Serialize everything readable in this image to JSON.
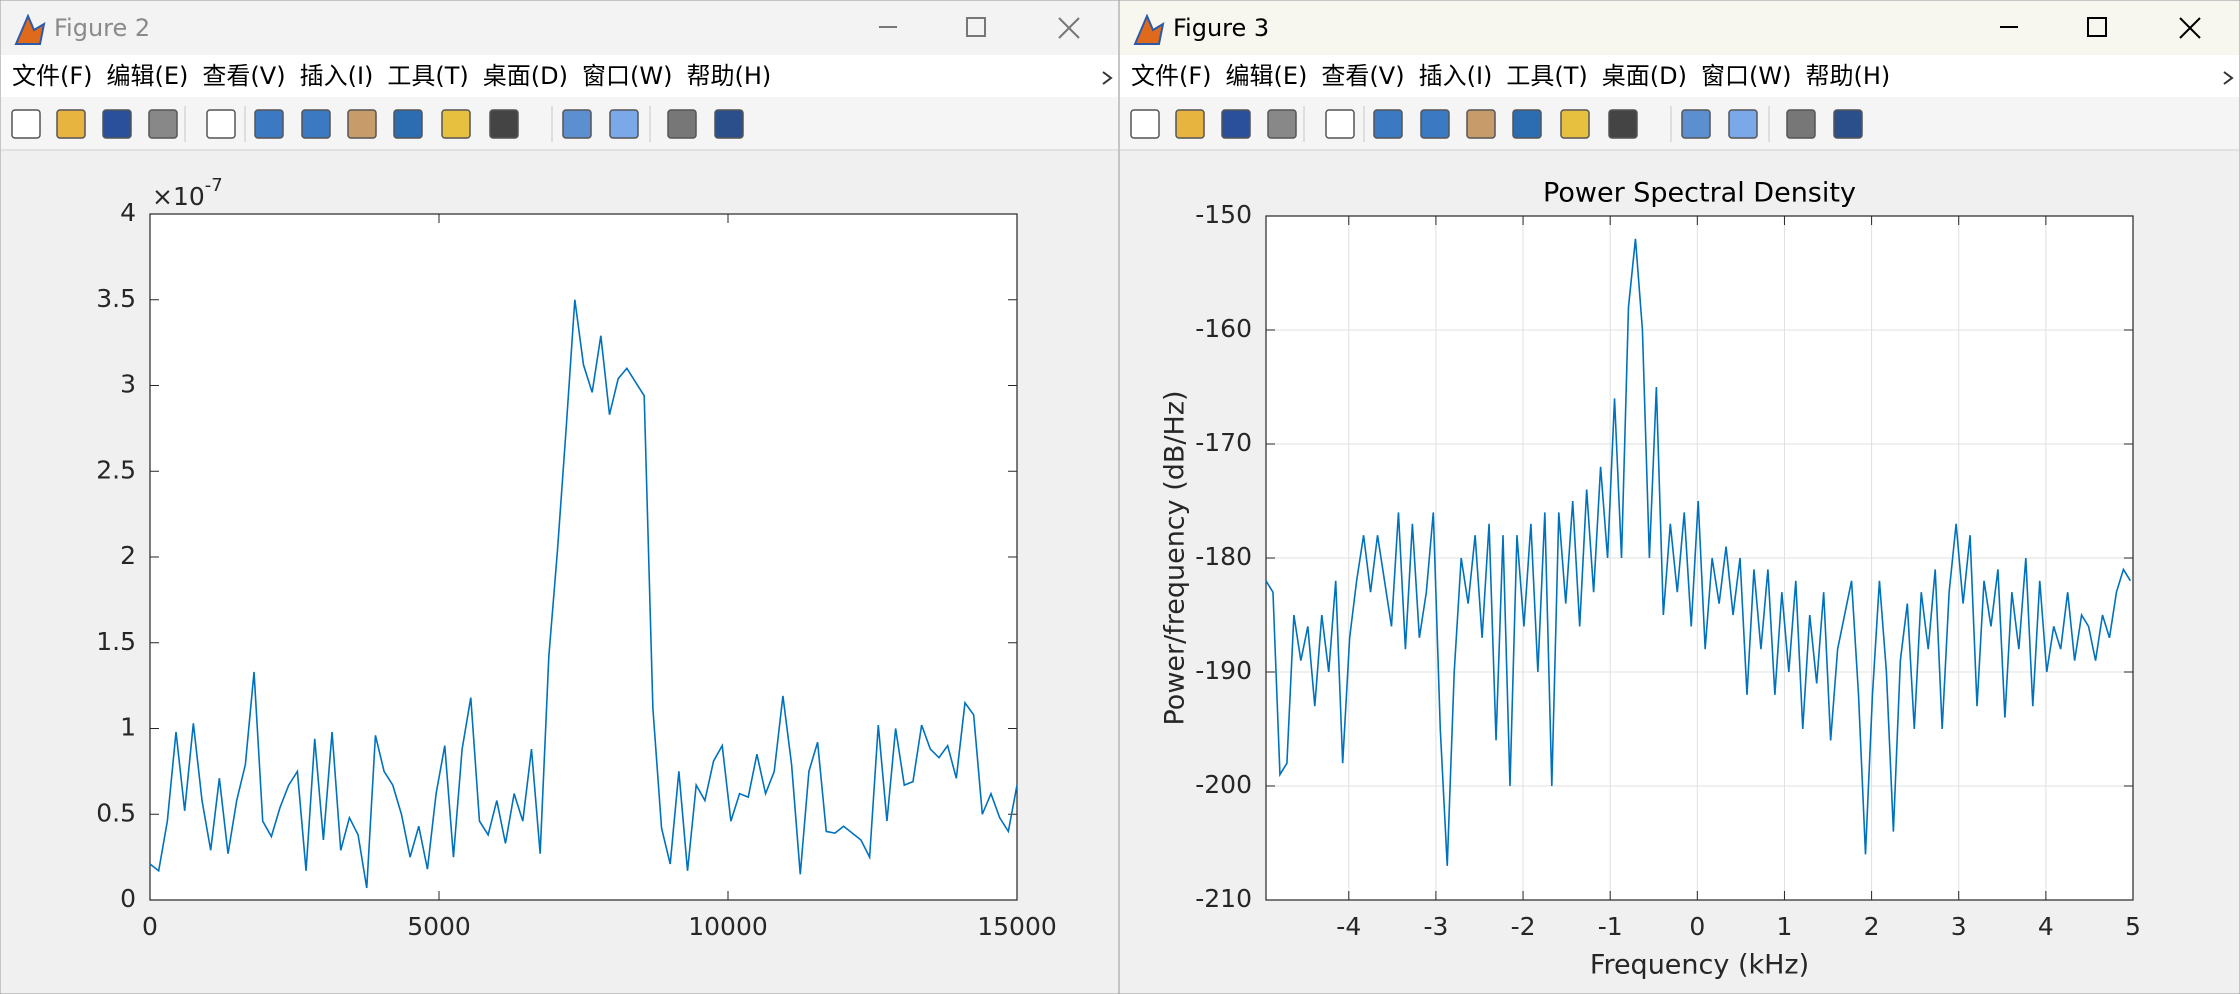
{
  "windows": [
    {
      "title": "Figure 2",
      "menu": [
        "文件(F)",
        "编辑(E)",
        "查看(V)",
        "插入(I)",
        "工具(T)",
        "桌面(D)",
        "窗口(W)",
        "帮助(H)"
      ],
      "chart_data": {
        "type": "line",
        "exponent": {
          "base": "×10",
          "power": "-7"
        },
        "x": [
          0,
          150,
          300,
          450,
          600,
          750,
          900,
          1050,
          1200,
          1350,
          1500,
          1650,
          1800,
          1950,
          2100,
          2250,
          2400,
          2550,
          2700,
          2850,
          3000,
          3150,
          3300,
          3450,
          3600,
          3750,
          3900,
          4050,
          4200,
          4350,
          4500,
          4650,
          4800,
          4950,
          5100,
          5250,
          5400,
          5550,
          5700,
          5850,
          6000,
          6150,
          6300,
          6450,
          6600,
          6750,
          6900,
          7050,
          7200,
          7350,
          7500,
          7650,
          7800,
          7950,
          8100,
          8250,
          8400,
          8550,
          8700,
          8850,
          9000,
          9150,
          9300,
          9450,
          9600,
          9750,
          9900,
          10050,
          10200,
          10350,
          10500,
          10650,
          10800,
          10950,
          11100,
          11250,
          11400,
          11550,
          11700,
          11850,
          12000,
          12150,
          12300,
          12450,
          12600,
          12750,
          12900,
          13050,
          13200,
          13350,
          13500,
          13650,
          13800,
          13950,
          14100,
          14250,
          14400,
          14550,
          14700,
          14850,
          15000
        ],
        "series": [
          {
            "color": "#0072bd",
            "values": [
              0.21,
              0.17,
              0.46,
              0.98,
              0.52,
              1.03,
              0.58,
              0.29,
              0.71,
              0.27,
              0.58,
              0.79,
              1.33,
              0.46,
              0.37,
              0.54,
              0.67,
              0.75,
              0.17,
              0.94,
              0.35,
              0.98,
              0.29,
              0.48,
              0.38,
              0.07,
              0.96,
              0.75,
              0.67,
              0.5,
              0.25,
              0.43,
              0.18,
              0.62,
              0.9,
              0.25,
              0.88,
              1.18,
              0.46,
              0.38,
              0.58,
              0.33,
              0.62,
              0.46,
              0.88,
              0.27,
              1.42,
              2.04,
              2.75,
              3.5,
              3.12,
              2.96,
              3.29,
              2.83,
              3.04,
              3.1,
              3.02,
              2.94,
              1.12,
              0.42,
              0.21,
              0.75,
              0.17,
              0.67,
              0.58,
              0.81,
              0.9,
              0.46,
              0.62,
              0.6,
              0.85,
              0.62,
              0.75,
              1.19,
              0.79,
              0.15,
              0.75,
              0.92,
              0.4,
              0.39,
              0.43,
              0.39,
              0.35,
              0.25,
              1.02,
              0.46,
              1.0,
              0.67,
              0.69,
              1.02,
              0.88,
              0.83,
              0.9,
              0.71,
              1.15,
              1.08,
              0.5,
              0.62,
              0.48,
              0.4,
              0.67
            ]
          }
        ],
        "xlim": [
          0,
          15000
        ],
        "xticks": [
          0,
          5000,
          10000,
          15000
        ],
        "ylim": [
          0,
          4
        ],
        "yticks": [
          0,
          0.5,
          1,
          1.5,
          2,
          2.5,
          3,
          3.5,
          4
        ],
        "grid": false
      }
    },
    {
      "title": "Figure 3",
      "menu": [
        "文件(F)",
        "编辑(E)",
        "查看(V)",
        "插入(I)",
        "工具(T)",
        "桌面(D)",
        "窗口(W)",
        "帮助(H)"
      ],
      "chart_data": {
        "type": "line",
        "title": "Power Spectral Density",
        "xlabel": "Frequency (kHz)",
        "ylabel": "Power/frequency (dB/Hz)",
        "x": [
          -4.95,
          -4.87,
          -4.79,
          -4.71,
          -4.63,
          -4.55,
          -4.47,
          -4.39,
          -4.31,
          -4.23,
          -4.15,
          -4.07,
          -3.99,
          -3.91,
          -3.83,
          -3.75,
          -3.67,
          -3.59,
          -3.51,
          -3.43,
          -3.35,
          -3.27,
          -3.19,
          -3.11,
          -3.03,
          -2.95,
          -2.87,
          -2.79,
          -2.71,
          -2.63,
          -2.55,
          -2.47,
          -2.39,
          -2.31,
          -2.23,
          -2.15,
          -2.07,
          -1.99,
          -1.91,
          -1.83,
          -1.75,
          -1.67,
          -1.59,
          -1.51,
          -1.43,
          -1.35,
          -1.27,
          -1.19,
          -1.11,
          -1.03,
          -0.95,
          -0.87,
          -0.79,
          -0.71,
          -0.63,
          -0.55,
          -0.47,
          -0.39,
          -0.31,
          -0.23,
          -0.15,
          -0.07,
          0.01,
          0.09,
          0.17,
          0.25,
          0.33,
          0.41,
          0.49,
          0.57,
          0.65,
          0.73,
          0.81,
          0.89,
          0.97,
          1.05,
          1.13,
          1.21,
          1.29,
          1.37,
          1.45,
          1.53,
          1.61,
          1.69,
          1.77,
          1.85,
          1.93,
          2.01,
          2.09,
          2.17,
          2.25,
          2.33,
          2.41,
          2.49,
          2.57,
          2.65,
          2.73,
          2.81,
          2.89,
          2.97,
          3.05,
          3.13,
          3.21,
          3.29,
          3.37,
          3.45,
          3.53,
          3.61,
          3.69,
          3.77,
          3.85,
          3.93,
          4.01,
          4.09,
          4.17,
          4.25,
          4.33,
          4.41,
          4.49,
          4.57,
          4.65,
          4.73,
          4.81,
          4.89,
          4.97
        ],
        "series": [
          {
            "color": "#0072bd",
            "values": [
              -182,
              -183,
              -199,
              -198,
              -185,
              -189,
              -186,
              -193,
              -185,
              -190,
              -182,
              -198,
              -187,
              -182,
              -178,
              -183,
              -178,
              -182,
              -186,
              -176,
              -188,
              -177,
              -187,
              -183,
              -176,
              -195,
              -207,
              -190,
              -180,
              -184,
              -178,
              -187,
              -177,
              -196,
              -178,
              -200,
              -178,
              -186,
              -177,
              -190,
              -176,
              -200,
              -176,
              -184,
              -175,
              -186,
              -174,
              -183,
              -172,
              -180,
              -166,
              -180,
              -158,
              -152,
              -160,
              -180,
              -165,
              -185,
              -177,
              -183,
              -176,
              -186,
              -175,
              -188,
              -180,
              -184,
              -179,
              -185,
              -180,
              -192,
              -181,
              -188,
              -181,
              -192,
              -183,
              -190,
              -182,
              -195,
              -185,
              -191,
              -183,
              -196,
              -188,
              -185,
              -182,
              -192,
              -206,
              -192,
              -182,
              -190,
              -204,
              -189,
              -184,
              -195,
              -183,
              -188,
              -181,
              -195,
              -183,
              -177,
              -184,
              -178,
              -193,
              -182,
              -186,
              -181,
              -194,
              -183,
              -188,
              -180,
              -193,
              -182,
              -190,
              -186,
              -188,
              -183,
              -189,
              -185,
              -186,
              -189,
              -185,
              -187,
              -183,
              -181,
              -182
            ]
          }
        ],
        "xlim": [
          -4.95,
          5
        ],
        "xticks": [
          -4,
          -3,
          -2,
          -1,
          0,
          1,
          2,
          3,
          4,
          5
        ],
        "ylim": [
          -210,
          -150
        ],
        "yticks": [
          -210,
          -200,
          -190,
          -180,
          -170,
          -160,
          -150
        ],
        "grid": true
      }
    }
  ]
}
